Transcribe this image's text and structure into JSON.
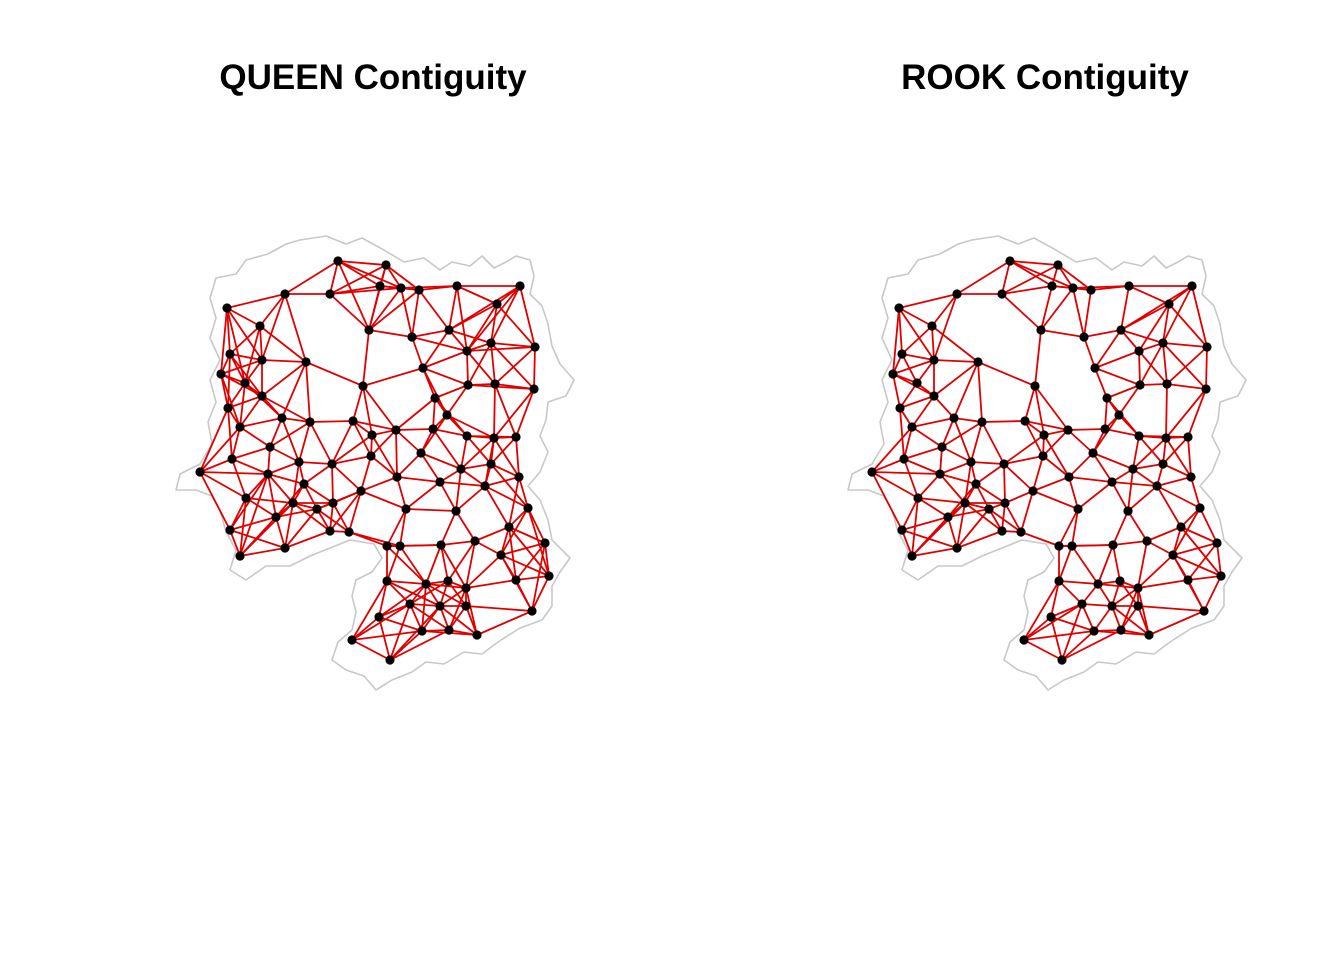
{
  "panels": [
    {
      "title": "QUEEN Contiguity"
    },
    {
      "title": "ROOK Contiguity"
    }
  ],
  "colors": {
    "background": "#ffffff",
    "boundary": "#c8c8c8",
    "link": "#e00000",
    "node": "#000000"
  }
}
